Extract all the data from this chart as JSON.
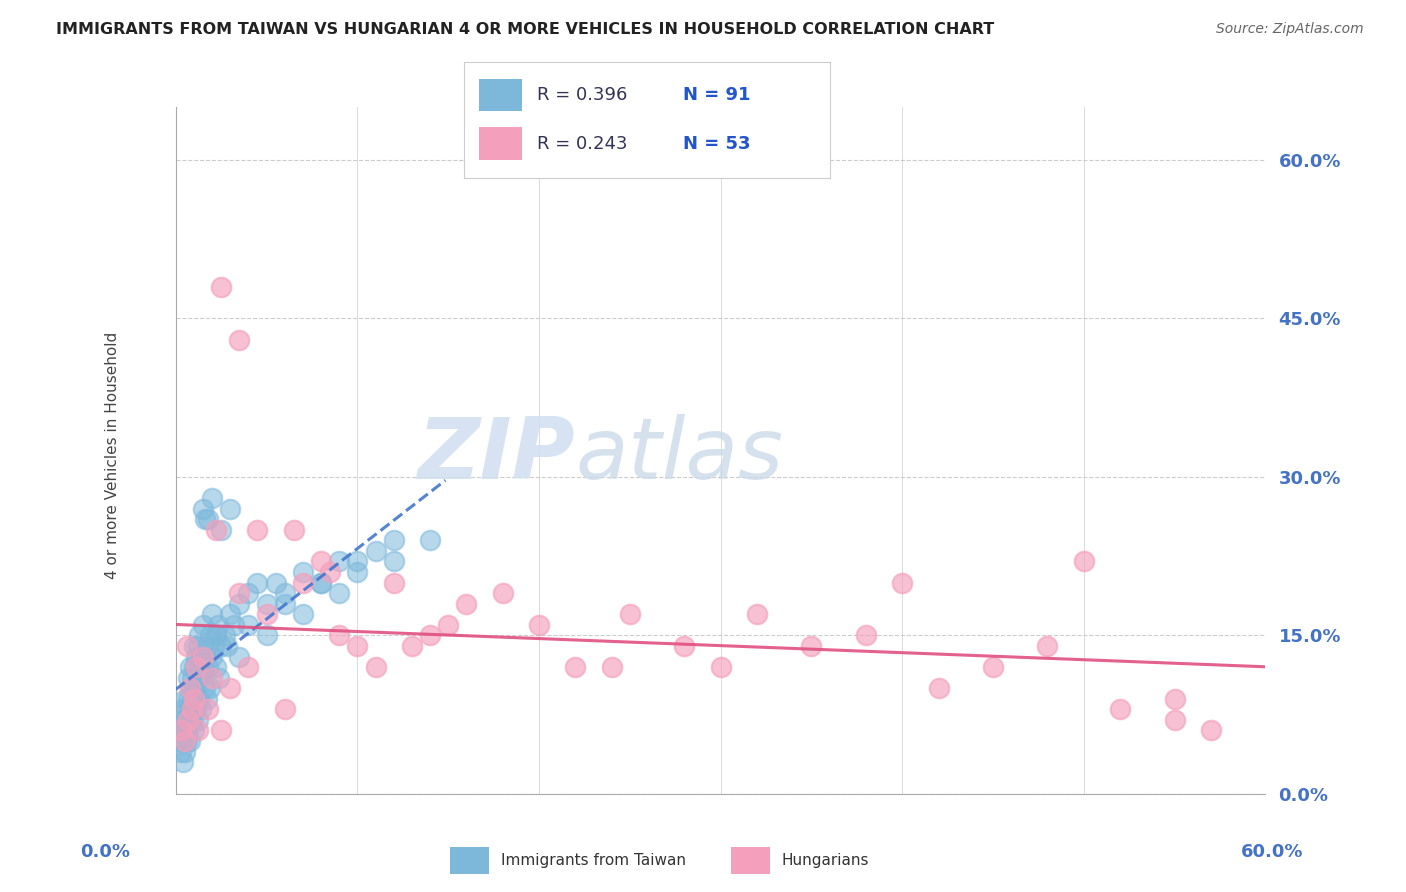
{
  "title": "IMMIGRANTS FROM TAIWAN VS HUNGARIAN 4 OR MORE VEHICLES IN HOUSEHOLD CORRELATION CHART",
  "source": "Source: ZipAtlas.com",
  "ylabel": "4 or more Vehicles in Household",
  "ytick_values": [
    0,
    15,
    30,
    45,
    60
  ],
  "xlim": [
    0,
    60
  ],
  "ylim": [
    0,
    65
  ],
  "color_taiwan": "#7db8db",
  "color_hungarian": "#f4a0bc",
  "legend_r1": "R = 0.396",
  "legend_n1": "N = 91",
  "legend_r2": "R = 0.243",
  "legend_n2": "N = 53",
  "legend_color_r": "#333355",
  "legend_color_n": "#2255cc",
  "watermark_zip": "ZIP",
  "watermark_atlas": "atlas",
  "bg_color": "#ffffff",
  "grid_color": "#cccccc",
  "axis_color": "#aaaaaa",
  "tick_label_color": "#4472c4",
  "taiwan_x": [
    0.2,
    0.3,
    0.3,
    0.4,
    0.4,
    0.5,
    0.5,
    0.5,
    0.6,
    0.6,
    0.7,
    0.7,
    0.7,
    0.8,
    0.8,
    0.8,
    0.9,
    0.9,
    1.0,
    1.0,
    1.0,
    1.0,
    1.1,
    1.1,
    1.2,
    1.2,
    1.3,
    1.3,
    1.4,
    1.4,
    1.5,
    1.5,
    1.6,
    1.7,
    1.8,
    1.9,
    2.0,
    2.0,
    2.1,
    2.2,
    2.3,
    2.5,
    2.7,
    3.0,
    3.2,
    3.5,
    4.0,
    4.5,
    5.0,
    5.5,
    6.0,
    7.0,
    8.0,
    9.0,
    10.0,
    11.0,
    12.0,
    14.0,
    1.5,
    1.8,
    2.0,
    2.5,
    3.0,
    0.6,
    0.7,
    0.9,
    1.1,
    1.3,
    1.6,
    2.2,
    2.8,
    0.4,
    0.5,
    0.8,
    1.0,
    1.2,
    1.4,
    1.7,
    1.9,
    2.4,
    3.5,
    5.0,
    7.0,
    9.0,
    4.0,
    6.0,
    8.0,
    10.0,
    12.0,
    2.2,
    1.6
  ],
  "taiwan_y": [
    5,
    4,
    7,
    6,
    8,
    5,
    7,
    9,
    6,
    8,
    7,
    9,
    11,
    8,
    10,
    12,
    9,
    11,
    8,
    10,
    12,
    14,
    10,
    13,
    11,
    14,
    12,
    15,
    11,
    13,
    12,
    16,
    13,
    14,
    12,
    15,
    13,
    17,
    14,
    15,
    16,
    14,
    15,
    17,
    16,
    18,
    19,
    20,
    18,
    20,
    19,
    21,
    20,
    22,
    21,
    23,
    22,
    24,
    27,
    26,
    28,
    25,
    27,
    5,
    6,
    7,
    8,
    9,
    10,
    12,
    14,
    3,
    4,
    5,
    6,
    7,
    8,
    9,
    10,
    11,
    13,
    15,
    17,
    19,
    16,
    18,
    20,
    22,
    24,
    15,
    26
  ],
  "hungarian_x": [
    0.3,
    0.5,
    0.6,
    0.7,
    0.8,
    0.9,
    1.0,
    1.1,
    1.2,
    1.5,
    1.8,
    2.0,
    2.2,
    2.5,
    3.0,
    3.5,
    4.0,
    5.0,
    6.0,
    7.0,
    8.0,
    9.0,
    10.0,
    11.0,
    12.0,
    13.0,
    14.0,
    15.0,
    16.0,
    18.0,
    20.0,
    22.0,
    24.0,
    25.0,
    28.0,
    30.0,
    32.0,
    35.0,
    38.0,
    40.0,
    42.0,
    45.0,
    48.0,
    50.0,
    52.0,
    55.0,
    57.0,
    2.5,
    3.5,
    4.5,
    6.5,
    8.5,
    55.0
  ],
  "hungarian_y": [
    6,
    5,
    14,
    7,
    10,
    8,
    9,
    12,
    6,
    13,
    8,
    11,
    25,
    6,
    10,
    19,
    12,
    17,
    8,
    20,
    22,
    15,
    14,
    12,
    20,
    14,
    15,
    16,
    18,
    19,
    16,
    12,
    12,
    17,
    14,
    12,
    17,
    14,
    15,
    20,
    10,
    12,
    14,
    22,
    8,
    7,
    6,
    48,
    43,
    25,
    25,
    21,
    9
  ]
}
